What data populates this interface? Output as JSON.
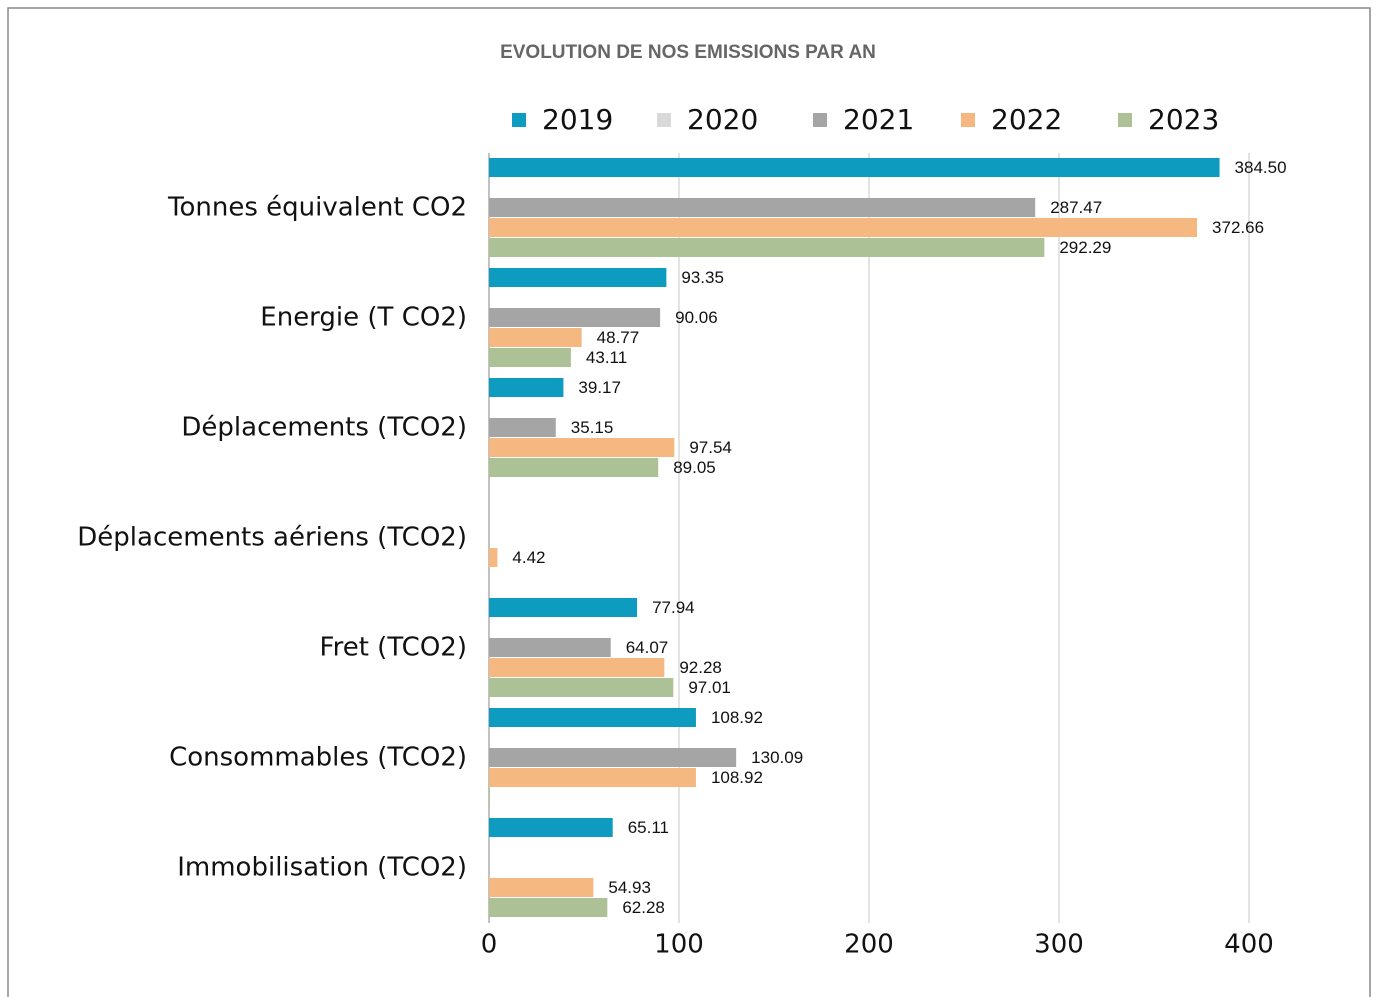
{
  "chart_data": {
    "type": "bar",
    "orientation": "horizontal",
    "title": "EVOLUTION DE NOS EMISSIONS PAR AN",
    "categories": [
      "Tonnes équivalent CO2",
      "Energie (T CO2)",
      "Déplacements (TCO2)",
      "Déplacements aériens (TCO2)",
      "Fret (TCO2)",
      "Consommables (TCO2)",
      "Immobilisation (TCO2)"
    ],
    "series": [
      {
        "name": "2019",
        "color": "#0e9bc0",
        "values": [
          384.5,
          93.35,
          39.17,
          null,
          77.94,
          108.92,
          65.11
        ],
        "value_labels": [
          "384.50",
          "93.35",
          "39.17",
          null,
          "77.94",
          "108.92",
          "65.11"
        ]
      },
      {
        "name": "2020",
        "color": "#d9d9d9",
        "values": [
          null,
          null,
          null,
          null,
          null,
          null,
          null
        ]
      },
      {
        "name": "2021",
        "color": "#a5a5a5",
        "values": [
          287.47,
          90.06,
          35.15,
          null,
          64.07,
          130.09,
          null
        ],
        "value_labels": [
          "287.47",
          "90.06",
          "35.15",
          null,
          "64.07",
          "130.09",
          null
        ]
      },
      {
        "name": "2022",
        "color": "#f5b880",
        "values": [
          372.66,
          48.77,
          97.54,
          4.42,
          92.28,
          108.92,
          54.93
        ],
        "value_labels": [
          "372.66",
          "48.77",
          "97.54",
          "4.42",
          "92.28",
          "108.92",
          "54.93"
        ]
      },
      {
        "name": "2023",
        "color": "#adc196",
        "values": [
          292.29,
          43.11,
          89.05,
          null,
          97.01,
          0.5,
          62.28
        ],
        "value_labels": [
          "292.29",
          "43.11",
          "89.05",
          null,
          "97.01",
          null,
          "62.28"
        ]
      }
    ],
    "xlim": [
      0,
      400
    ],
    "xticks": [
      0,
      100,
      200,
      300,
      400
    ],
    "grid": true,
    "legend": "top"
  }
}
